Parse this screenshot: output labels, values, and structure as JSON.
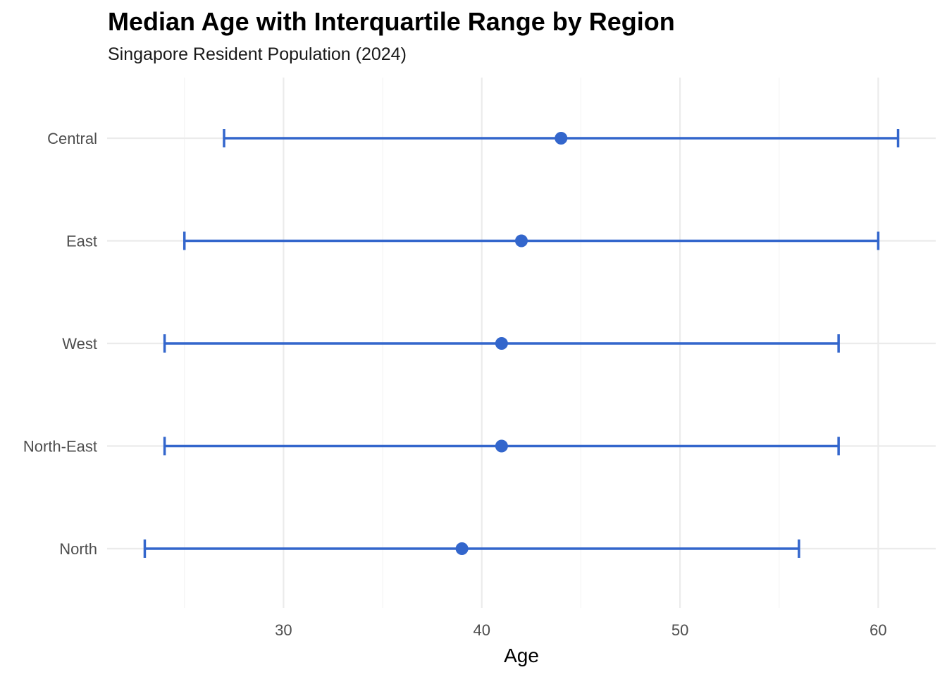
{
  "chart_data": {
    "type": "errorbar",
    "title": "Median Age with Interquartile Range by Region",
    "subtitle": "Singapore Resident Population (2024)",
    "xlabel": "Age",
    "ylabel": "",
    "xlim": [
      21.1,
      62.9
    ],
    "x_ticks": [
      30,
      40,
      50,
      60
    ],
    "x_minor": [
      25,
      35,
      45,
      55
    ],
    "grid": true,
    "categories": [
      "Central",
      "East",
      "West",
      "North-East",
      "North"
    ],
    "series": [
      {
        "name": "IQR",
        "median": [
          44,
          42,
          41,
          41,
          39
        ],
        "q1": [
          27,
          25,
          24,
          24,
          23
        ],
        "q3": [
          61,
          60,
          58,
          58,
          56
        ]
      }
    ],
    "colors": {
      "series": "#3366cc",
      "grid_major": "#ebebeb",
      "grid_minor": "#f4f4f4"
    }
  }
}
